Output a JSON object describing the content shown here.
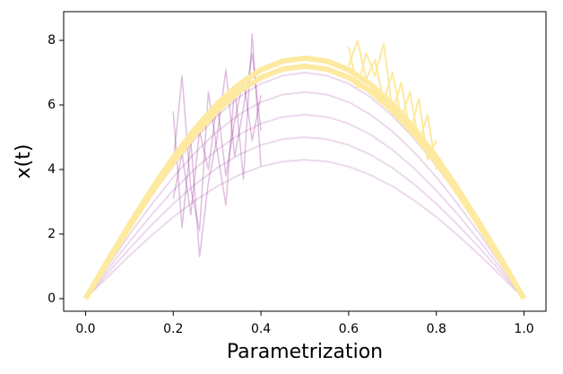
{
  "chart_data": {
    "type": "line",
    "xlabel": "Parametrization",
    "ylabel": "x(t)",
    "xlim": [
      -0.05,
      1.05
    ],
    "ylim": [
      -0.39,
      8.89
    ],
    "xticks": [
      {
        "value": 0,
        "label": "0.0"
      },
      {
        "value": 0.2,
        "label": "0.2"
      },
      {
        "value": 0.4,
        "label": "0.4"
      },
      {
        "value": 0.6,
        "label": "0.6"
      },
      {
        "value": 0.8,
        "label": "0.8"
      },
      {
        "value": 1,
        "label": "1.0"
      }
    ],
    "yticks": [
      0,
      2,
      4,
      6,
      8
    ],
    "grid": false,
    "series": [
      {
        "color": "#800080",
        "alpha": 0.15,
        "width": 2,
        "x": [
          0,
          0.05,
          0.1,
          0.15,
          0.2,
          0.25,
          0.3,
          0.35,
          0.4,
          0.45,
          0.5,
          0.55,
          0.6,
          0.65,
          0.7,
          0.75,
          0.8,
          0.85,
          0.9,
          0.95,
          1
        ],
        "values": [
          0,
          0.67,
          1.33,
          1.95,
          2.53,
          3.04,
          3.48,
          3.83,
          4.09,
          4.25,
          4.3,
          4.25,
          4.09,
          3.83,
          3.48,
          3.04,
          2.53,
          1.95,
          1.33,
          0.67,
          0
        ]
      },
      {
        "color": "#800080",
        "alpha": 0.15,
        "width": 2,
        "x": [
          0,
          0.05,
          0.1,
          0.15,
          0.2,
          0.25,
          0.3,
          0.35,
          0.4,
          0.45,
          0.5,
          0.55,
          0.6,
          0.65,
          0.7,
          0.75,
          0.8,
          0.85,
          0.9,
          0.95,
          1
        ],
        "values": [
          0,
          0.78,
          1.55,
          2.27,
          2.94,
          3.54,
          4.05,
          4.46,
          4.76,
          4.94,
          5.0,
          4.94,
          4.76,
          4.46,
          4.05,
          3.54,
          2.94,
          2.27,
          1.55,
          0.78,
          0
        ]
      },
      {
        "color": "#800080",
        "alpha": 0.15,
        "width": 2,
        "x": [
          0,
          0.05,
          0.1,
          0.15,
          0.2,
          0.25,
          0.3,
          0.35,
          0.4,
          0.45,
          0.5,
          0.55,
          0.6,
          0.65,
          0.7,
          0.75,
          0.8,
          0.85,
          0.9,
          0.95,
          1
        ],
        "values": [
          0,
          0.89,
          1.76,
          2.59,
          3.35,
          4.03,
          4.61,
          5.08,
          5.42,
          5.63,
          5.7,
          5.63,
          5.42,
          5.08,
          4.61,
          4.03,
          3.35,
          2.59,
          1.76,
          0.89,
          0
        ]
      },
      {
        "color": "#800080",
        "alpha": 0.15,
        "width": 2,
        "x": [
          0,
          0.05,
          0.1,
          0.15,
          0.2,
          0.25,
          0.3,
          0.35,
          0.4,
          0.45,
          0.5,
          0.55,
          0.6,
          0.65,
          0.7,
          0.75,
          0.8,
          0.85,
          0.9,
          0.95,
          1
        ],
        "values": [
          0,
          1.0,
          1.98,
          2.91,
          3.76,
          4.53,
          5.18,
          5.7,
          6.09,
          6.32,
          6.4,
          6.32,
          6.09,
          5.7,
          5.18,
          4.53,
          3.76,
          2.91,
          1.98,
          1.0,
          0
        ]
      },
      {
        "color": "#800080",
        "alpha": 0.15,
        "width": 2,
        "x": [
          0,
          0.05,
          0.1,
          0.15,
          0.2,
          0.25,
          0.3,
          0.35,
          0.4,
          0.45,
          0.5,
          0.55,
          0.6,
          0.65,
          0.7,
          0.75,
          0.8,
          0.85,
          0.9,
          0.95,
          1
        ],
        "values": [
          0,
          1.09,
          2.16,
          3.18,
          4.11,
          4.95,
          5.66,
          6.24,
          6.66,
          6.91,
          7.0,
          6.91,
          6.66,
          6.24,
          5.66,
          4.95,
          4.11,
          3.18,
          2.16,
          1.09,
          0
        ]
      },
      {
        "color": "#800080",
        "alpha": 0.25,
        "width": 1.5,
        "x": [
          0.2,
          0.22,
          0.24,
          0.26,
          0.28,
          0.3,
          0.32,
          0.34,
          0.36,
          0.38,
          0.4
        ],
        "values": [
          3.1,
          4.5,
          2.6,
          5.2,
          4.0,
          6.1,
          3.8,
          5.5,
          6.8,
          4.9,
          6.3
        ]
      },
      {
        "color": "#800080",
        "alpha": 0.25,
        "width": 1.5,
        "x": [
          0.2,
          0.22,
          0.24,
          0.26,
          0.28,
          0.3,
          0.32,
          0.34,
          0.36,
          0.38,
          0.4
        ],
        "values": [
          5.8,
          2.2,
          4.9,
          1.3,
          3.6,
          5.0,
          7.1,
          4.4,
          5.9,
          7.6,
          5.2
        ]
      },
      {
        "color": "#800080",
        "alpha": 0.25,
        "width": 1.5,
        "x": [
          0.2,
          0.22,
          0.24,
          0.26,
          0.28,
          0.3,
          0.32,
          0.34,
          0.36,
          0.38,
          0.4
        ],
        "values": [
          4.2,
          6.9,
          3.4,
          2.1,
          6.4,
          4.6,
          2.9,
          6.6,
          3.7,
          8.2,
          4.1
        ]
      },
      {
        "color": "#fdeaa0",
        "alpha": 1,
        "width": 6,
        "x": [
          0,
          0.05,
          0.1,
          0.15,
          0.2,
          0.25,
          0.3,
          0.35,
          0.4,
          0.45,
          0.5,
          0.55,
          0.6,
          0.65,
          0.7,
          0.75,
          0.8,
          0.85,
          0.9,
          0.95,
          1
        ],
        "values": [
          0,
          1.13,
          2.22,
          3.27,
          4.23,
          5.09,
          5.82,
          6.42,
          6.85,
          7.11,
          7.2,
          7.11,
          6.85,
          6.42,
          5.82,
          5.09,
          4.23,
          3.27,
          2.22,
          1.13,
          0
        ]
      },
      {
        "color": "#fdeaa0",
        "alpha": 1,
        "width": 6,
        "x": [
          0,
          0.05,
          0.1,
          0.15,
          0.2,
          0.25,
          0.3,
          0.35,
          0.4,
          0.45,
          0.5,
          0.55,
          0.6,
          0.65,
          0.7,
          0.75,
          0.8,
          0.85,
          0.9,
          0.95,
          1
        ],
        "values": [
          0,
          1.17,
          2.3,
          3.38,
          4.38,
          5.27,
          6.03,
          6.64,
          7.09,
          7.36,
          7.45,
          7.36,
          7.09,
          6.64,
          6.03,
          5.27,
          4.38,
          3.38,
          2.3,
          1.17,
          0
        ]
      },
      {
        "color": "#fdeaa0",
        "alpha": 1,
        "width": 2,
        "x": [
          0.6,
          0.62,
          0.64,
          0.66,
          0.68,
          0.7,
          0.72,
          0.74,
          0.76,
          0.78,
          0.8
        ],
        "values": [
          7.8,
          6.5,
          7.6,
          6.9,
          7.9,
          5.8,
          6.7,
          5.1,
          6.2,
          4.3,
          4.9
        ]
      },
      {
        "color": "#fdeaa0",
        "alpha": 1,
        "width": 2,
        "x": [
          0.6,
          0.62,
          0.64,
          0.66,
          0.68,
          0.7,
          0.72,
          0.74,
          0.76,
          0.78,
          0.8
        ],
        "values": [
          7.2,
          8.0,
          6.8,
          7.4,
          6.1,
          7.0,
          5.6,
          6.4,
          4.8,
          5.7,
          4.0
        ]
      }
    ]
  }
}
